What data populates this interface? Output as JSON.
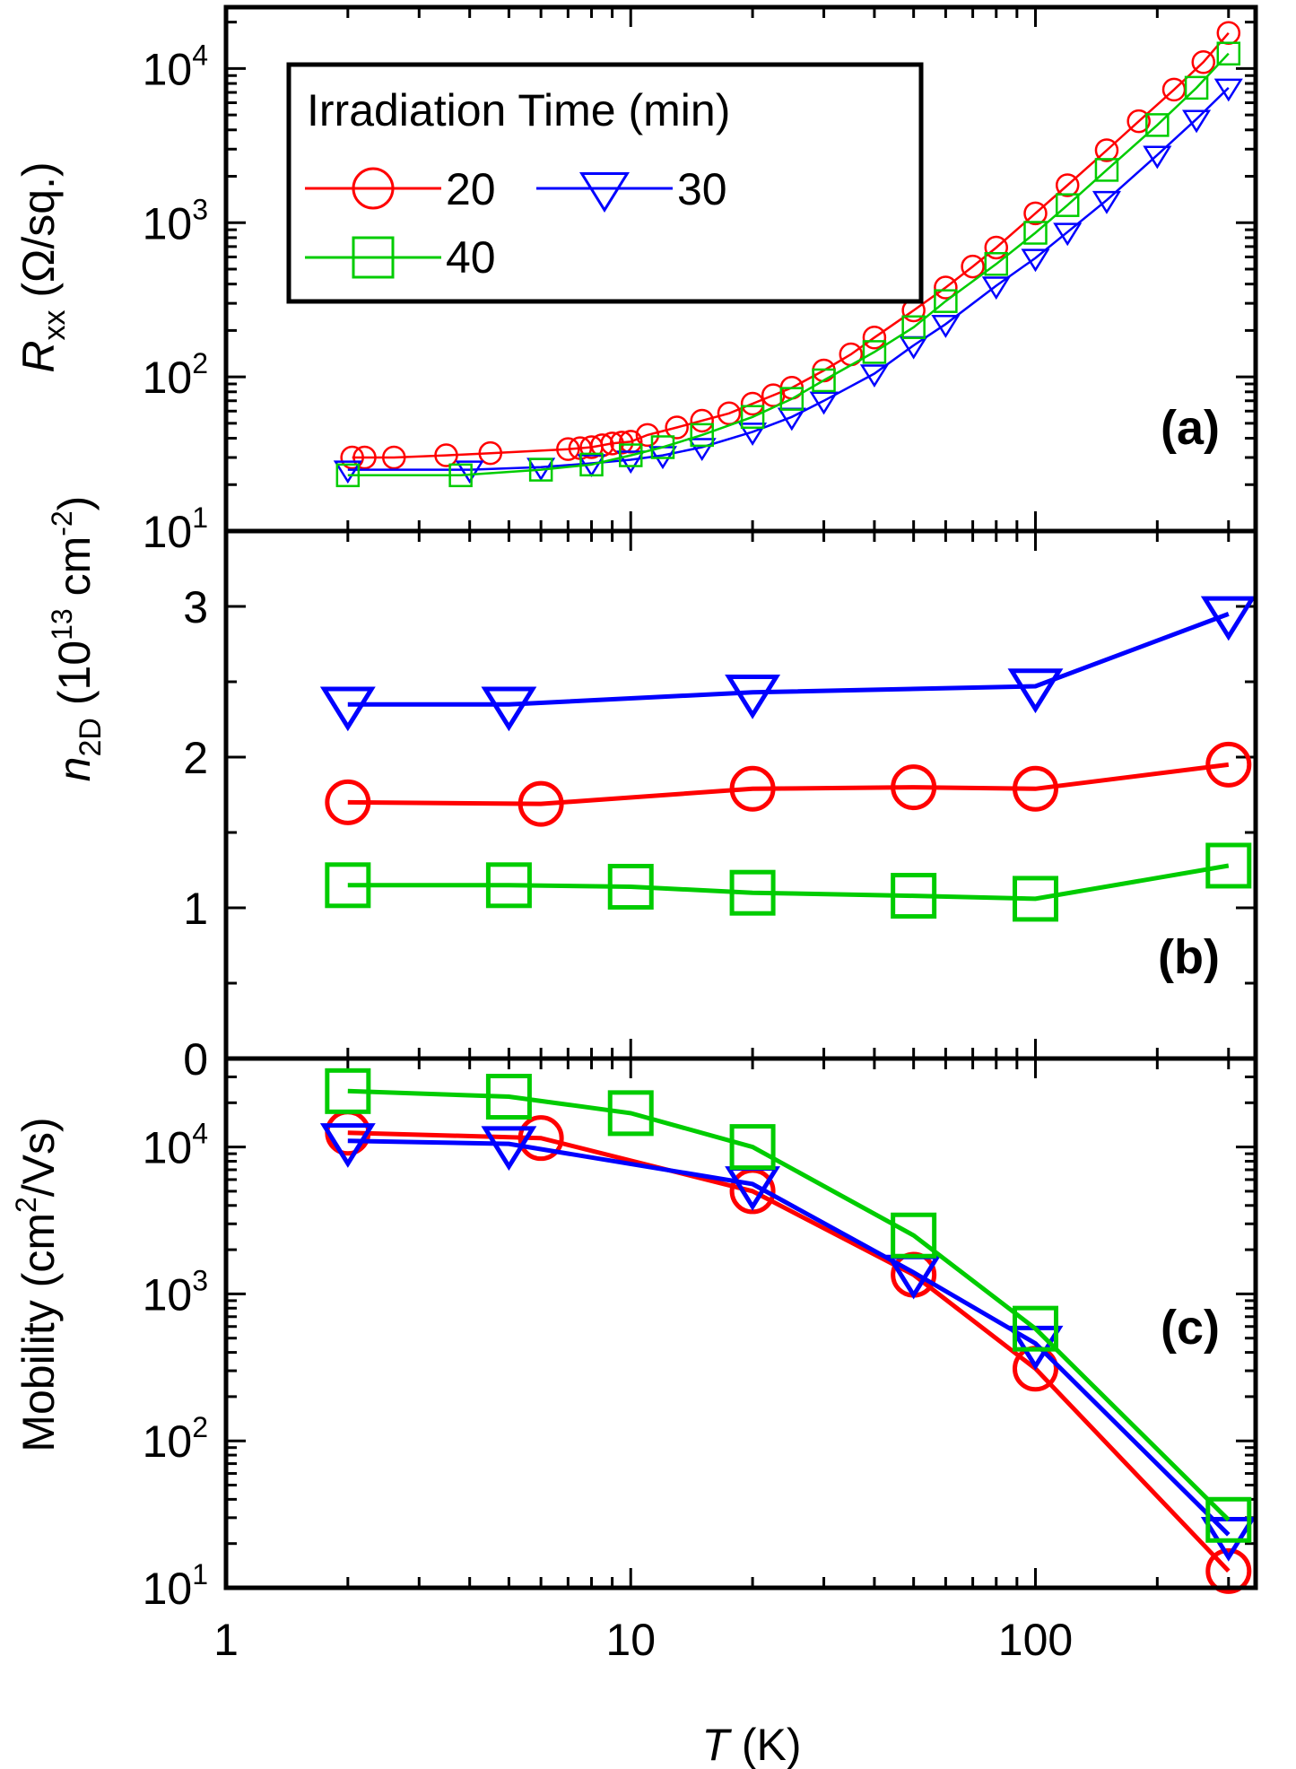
{
  "figure": {
    "xlabel_var": "T",
    "xlabel_unit": " (K)",
    "xticks": [
      {
        "value": 1,
        "label": "1"
      },
      {
        "value": 10,
        "label": "10"
      },
      {
        "value": 100,
        "label": "100"
      }
    ]
  },
  "legend": {
    "title": "Irradiation Time (min)",
    "entries": [
      {
        "label": "20",
        "series": "20"
      },
      {
        "label": "30",
        "series": "30"
      },
      {
        "label": "40",
        "series": "40"
      }
    ]
  },
  "colors": {
    "20": "#ff0000",
    "30": "#0000ff",
    "40": "#00cc00"
  },
  "markers": {
    "20": "circle",
    "30": "triangle-down",
    "40": "square"
  },
  "chart_data": [
    {
      "id": "a",
      "type": "line",
      "panel_label": "(a)",
      "ylabel_var": "R",
      "ylabel_sub": "xx",
      "ylabel_unit": " (Ω/sq.)",
      "xscale": "log",
      "yscale": "log",
      "xlim": [
        1,
        350
      ],
      "ylim": [
        10,
        25000
      ],
      "yticks": [
        {
          "value": 10,
          "base": "10",
          "exp": "1"
        },
        {
          "value": 100,
          "base": "10",
          "exp": "2"
        },
        {
          "value": 1000,
          "base": "10",
          "exp": "3"
        },
        {
          "value": 10000,
          "base": "10",
          "exp": "4"
        }
      ],
      "series": [
        {
          "name": "20",
          "x": [
            2.05,
            2.2,
            2.6,
            3.5,
            4.5,
            7,
            7.5,
            8,
            8.5,
            9,
            9.5,
            10,
            11,
            13,
            15,
            17.5,
            20,
            22.5,
            25,
            30,
            35,
            40,
            50,
            60,
            70,
            80,
            100,
            120,
            150,
            180,
            220,
            260,
            300
          ],
          "y": [
            30,
            30,
            30,
            31,
            32,
            34,
            34.5,
            35,
            36,
            37,
            37.5,
            38,
            42,
            47,
            52,
            58,
            67,
            76,
            85,
            110,
            140,
            180,
            270,
            380,
            520,
            690,
            1150,
            1750,
            2950,
            4550,
            7300,
            11000,
            17000
          ]
        },
        {
          "name": "30",
          "x": [
            2,
            4,
            6,
            8,
            10,
            12,
            15,
            20,
            25,
            30,
            40,
            50,
            60,
            80,
            100,
            120,
            150,
            200,
            250,
            300
          ],
          "y": [
            25,
            25,
            26,
            27.5,
            29,
            31,
            35,
            44,
            55,
            70,
            105,
            160,
            220,
            390,
            590,
            870,
            1400,
            2750,
            4700,
            7500
          ]
        },
        {
          "name": "40",
          "x": [
            2,
            3.8,
            6,
            8,
            10,
            12,
            15,
            20,
            25,
            30,
            40,
            50,
            60,
            80,
            100,
            120,
            150,
            200,
            250,
            300
          ],
          "y": [
            23,
            23,
            25,
            27,
            31,
            35,
            42,
            55,
            72,
            95,
            145,
            210,
            310,
            540,
            860,
            1300,
            2200,
            4300,
            7500,
            12500
          ]
        }
      ]
    },
    {
      "id": "b",
      "type": "line",
      "panel_label": "(b)",
      "ylabel_var": "n",
      "ylabel_sub": "2D",
      "ylabel_unit_pre": " (10",
      "ylabel_unit_exp1": "13",
      "ylabel_unit_mid": " cm",
      "ylabel_unit_exp2": "-2",
      "ylabel_unit_post": ")",
      "xscale": "log",
      "yscale": "linear",
      "xlim": [
        1,
        350
      ],
      "ylim": [
        0,
        3.5
      ],
      "yticks": [
        {
          "value": 0,
          "label": "0"
        },
        {
          "value": 1,
          "label": "1"
        },
        {
          "value": 2,
          "label": "2"
        },
        {
          "value": 3,
          "label": "3"
        }
      ],
      "series": [
        {
          "name": "20",
          "x": [
            2,
            6,
            20,
            50,
            100,
            300
          ],
          "y": [
            1.7,
            1.69,
            1.79,
            1.8,
            1.79,
            1.95
          ]
        },
        {
          "name": "30",
          "x": [
            2,
            5,
            20,
            100,
            300
          ],
          "y": [
            2.35,
            2.35,
            2.43,
            2.47,
            2.95
          ]
        },
        {
          "name": "40",
          "x": [
            2,
            5,
            10,
            20,
            50,
            100,
            300
          ],
          "y": [
            1.15,
            1.15,
            1.14,
            1.1,
            1.08,
            1.06,
            1.28
          ]
        }
      ]
    },
    {
      "id": "c",
      "type": "line",
      "panel_label": "(c)",
      "ylabel_pre": "Mobility (cm",
      "ylabel_exp": "2",
      "ylabel_post": "/Vs)",
      "xscale": "log",
      "yscale": "log",
      "xlim": [
        1,
        350
      ],
      "ylim": [
        10,
        40000
      ],
      "yticks": [
        {
          "value": 10,
          "base": "10",
          "exp": "1"
        },
        {
          "value": 100,
          "base": "10",
          "exp": "2"
        },
        {
          "value": 1000,
          "base": "10",
          "exp": "3"
        },
        {
          "value": 10000,
          "base": "10",
          "exp": "4"
        }
      ],
      "series": [
        {
          "name": "20",
          "x": [
            2,
            6,
            20,
            50,
            100,
            300
          ],
          "y": [
            12500,
            11500,
            5000,
            1350,
            310,
            13
          ]
        },
        {
          "name": "30",
          "x": [
            2,
            5,
            20,
            50,
            100,
            300
          ],
          "y": [
            11000,
            10500,
            5600,
            1400,
            460,
            23
          ]
        },
        {
          "name": "40",
          "x": [
            2,
            5,
            10,
            20,
            50,
            100,
            300
          ],
          "y": [
            24000,
            22000,
            17000,
            10000,
            2500,
            580,
            29
          ]
        }
      ]
    }
  ]
}
